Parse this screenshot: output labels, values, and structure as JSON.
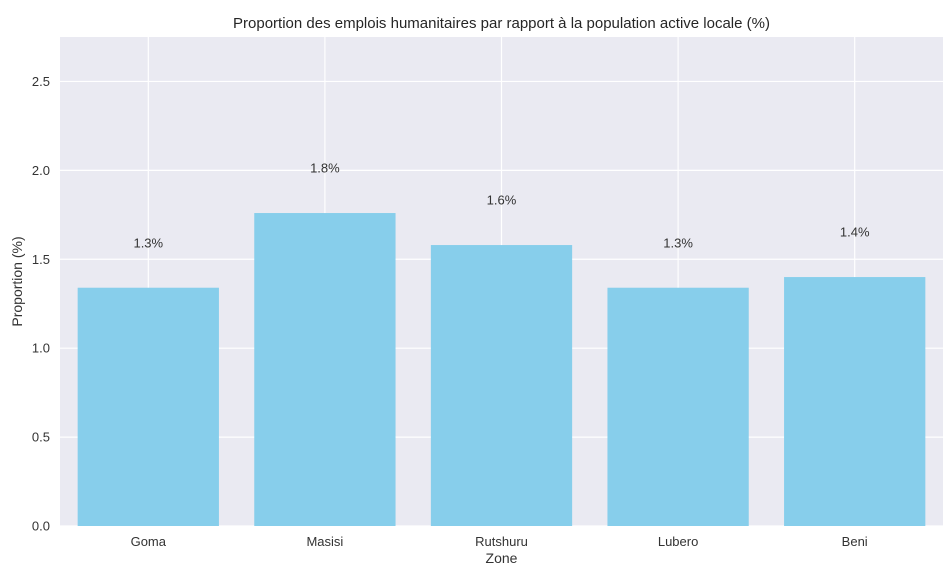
{
  "chart_data": {
    "type": "bar",
    "title": "Proportion des emplois humanitaires par rapport à la population active locale (%)",
    "xlabel": "Zone",
    "ylabel": "Proportion (%)",
    "categories": [
      "Goma",
      "Masisi",
      "Rutshuru",
      "Lubero",
      "Beni"
    ],
    "values": [
      1.34,
      1.76,
      1.58,
      1.34,
      1.4
    ],
    "data_labels": [
      "1.3%",
      "1.8%",
      "1.6%",
      "1.3%",
      "1.4%"
    ],
    "ylim": [
      0,
      2.75
    ],
    "yticks": [
      0.0,
      0.5,
      1.0,
      1.5,
      2.0,
      2.5
    ],
    "ytick_labels": [
      "0.0",
      "0.5",
      "1.0",
      "1.5",
      "2.0",
      "2.5"
    ],
    "grid": true,
    "colors": {
      "bar": "#87CEEB",
      "plot_background": "#EAEAF2",
      "grid": "#FFFFFF",
      "text": "#333333"
    }
  }
}
